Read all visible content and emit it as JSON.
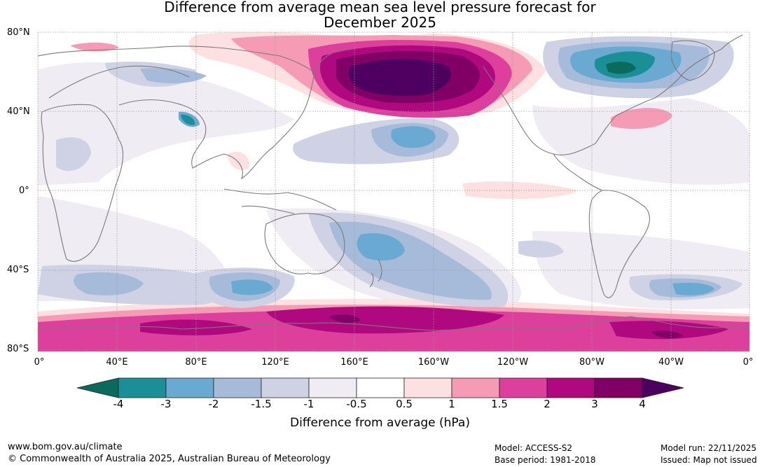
{
  "title_line1": "Difference from average mean sea level pressure forecast for",
  "title_line2": "December 2025",
  "lat_labels": [
    "80°N",
    "40°N",
    "0°",
    "40°S",
    "80°S"
  ],
  "lon_labels": [
    "0°",
    "40°E",
    "80°E",
    "120°E",
    "160°E",
    "160°W",
    "120°W",
    "80°W",
    "40°W",
    "0°"
  ],
  "colorbar": {
    "ticks": [
      "-4",
      "-3",
      "-2",
      "-1.5",
      "-1",
      "-0.5",
      "0.5",
      "1",
      "1.5",
      "2",
      "3",
      "4"
    ],
    "colors": [
      "#0b6a5e",
      "#1b8f96",
      "#6aaad2",
      "#a6bbd9",
      "#cfd1e5",
      "#f0ecf3",
      "#ffffff",
      "#fde0e2",
      "#f69bb5",
      "#dc3f9c",
      "#b0087f",
      "#800066",
      "#4d0060"
    ],
    "label": "Difference from average (hPa)"
  },
  "footer": {
    "url": "www.bom.gov.au/climate",
    "copyright": "© Commonwealth of Australia 2025, Australian Bureau of Meteorology",
    "model": "Model: ACCESS-S2",
    "base_period": "Base period: 1981-2018",
    "model_run": "Model run: 22/11/2025",
    "issued": "Issued: Map not issued"
  }
}
